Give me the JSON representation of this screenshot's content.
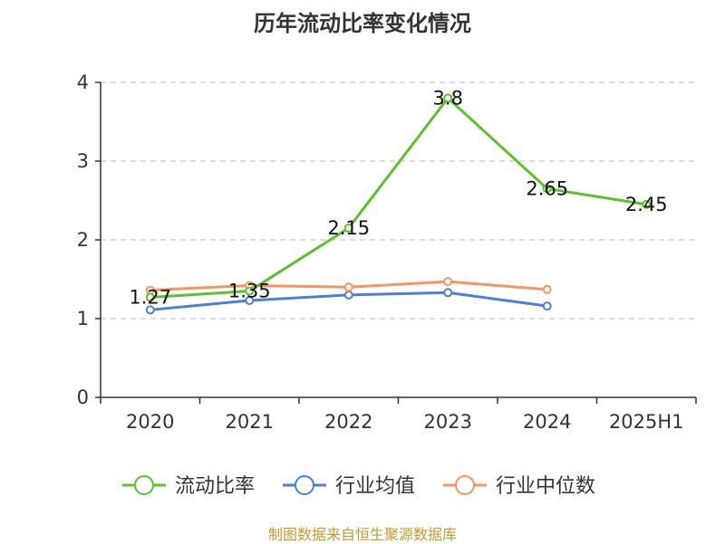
{
  "title": "历年流动比率变化情况",
  "source": "制图数据来自恒生聚源数据库",
  "chart_data": {
    "type": "line",
    "title": "历年流动比率变化情况",
    "categories": [
      "2020",
      "2021",
      "2022",
      "2023",
      "2024",
      "2025H1"
    ],
    "ylim": [
      0,
      4
    ],
    "yticks": [
      0,
      1,
      2,
      3,
      4
    ],
    "grid": true,
    "legend_position": "bottom",
    "series": [
      {
        "name": "流动比率",
        "color": "#5dc12b",
        "values": [
          1.27,
          1.35,
          2.15,
          3.8,
          2.65,
          2.45
        ],
        "labels": [
          "1.27",
          "1.35",
          "2.15",
          "3.8",
          "2.65",
          "2.45"
        ]
      },
      {
        "name": "行业均值",
        "color": "#4c7fd9",
        "values": [
          1.11,
          1.23,
          1.3,
          1.33,
          1.16,
          null
        ]
      },
      {
        "name": "行业中位数",
        "color": "#f79461",
        "values": [
          1.36,
          1.42,
          1.4,
          1.47,
          1.37,
          null
        ]
      }
    ]
  }
}
